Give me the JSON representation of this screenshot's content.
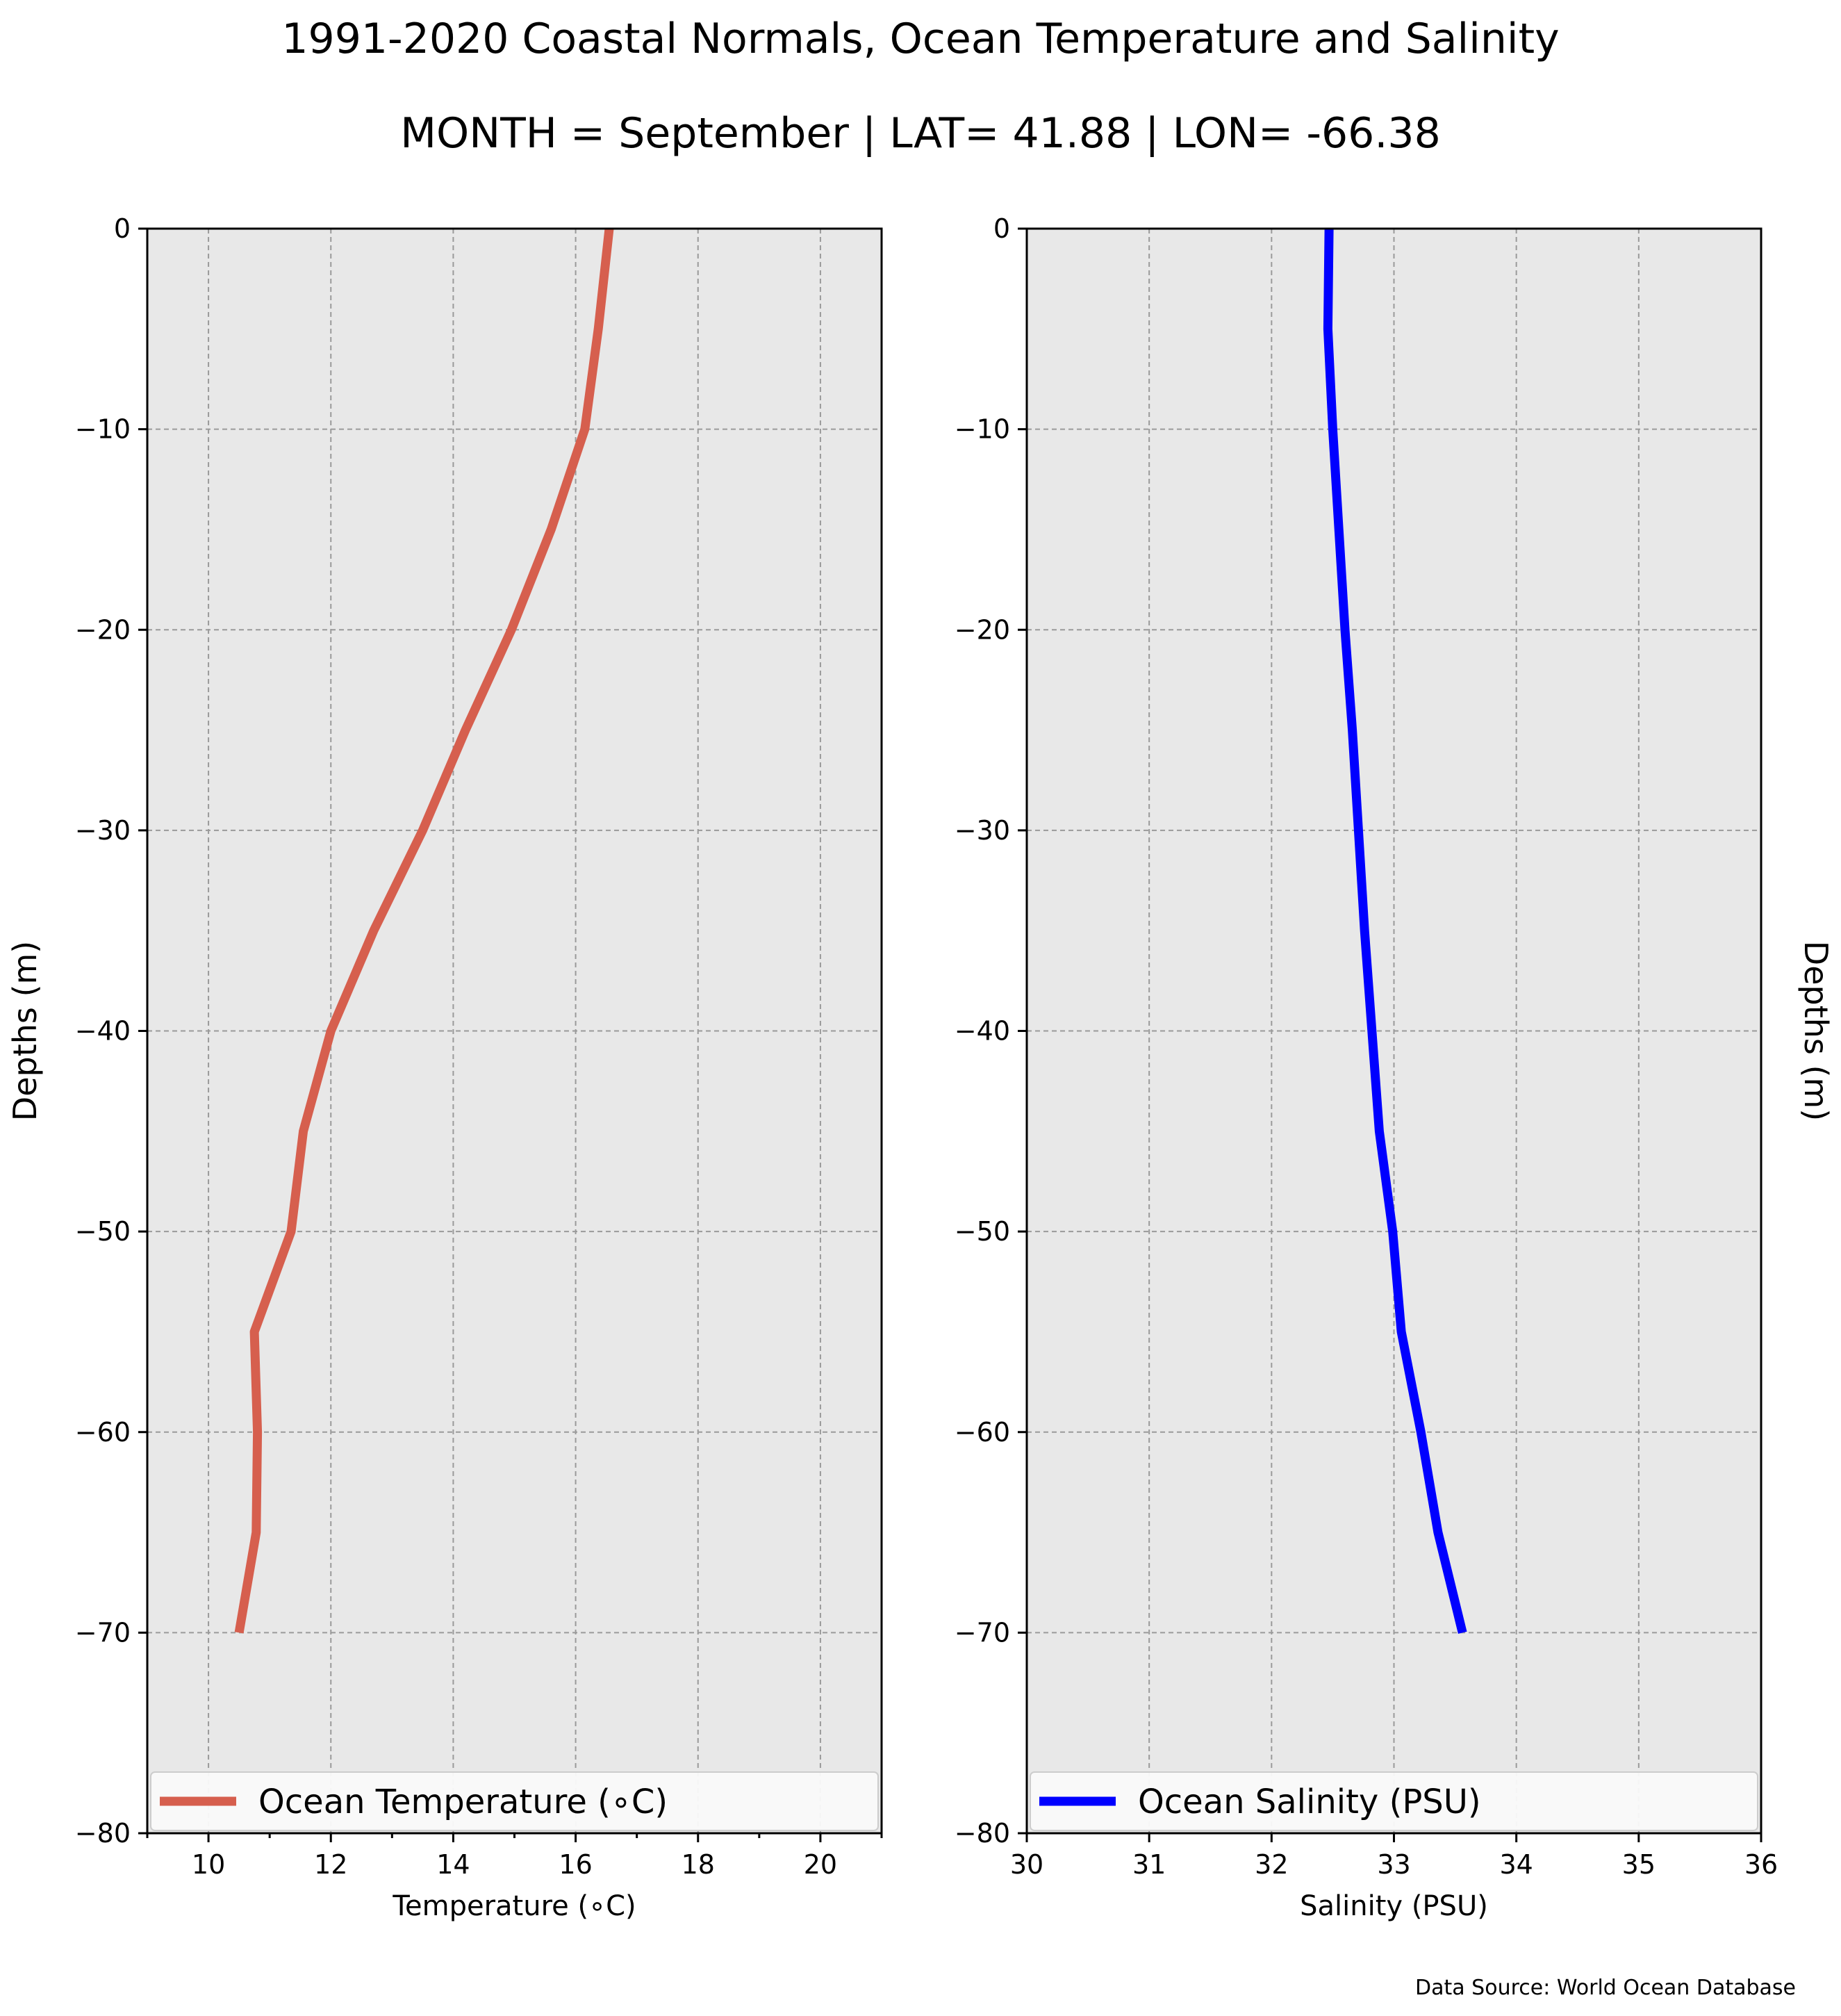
{
  "figure": {
    "title": "1991-2020 Coastal Normals, Ocean Temperature and Salinity",
    "subtitle": "MONTH = September | LAT= 41.88 | LON= -66.38",
    "source": "Data Source: World Ocean Database"
  },
  "chart_data": [
    {
      "type": "line",
      "xlabel": "Temperature (∘C)",
      "ylabel": "Depths (m)",
      "xlim": [
        9,
        21
      ],
      "ylim": [
        -80,
        0
      ],
      "xticks": [
        10,
        12,
        14,
        16,
        18,
        20
      ],
      "xticks_minor": [
        9,
        11,
        13,
        15,
        17,
        19,
        21
      ],
      "yticks": [
        0,
        -10,
        -20,
        -30,
        -40,
        -50,
        -60,
        -70,
        -80
      ],
      "tick_labels_x": [
        "10",
        "12",
        "14",
        "16",
        "18",
        "20"
      ],
      "tick_labels_y": [
        "0",
        "−10",
        "−20",
        "−30",
        "−40",
        "−50",
        "−60",
        "−70",
        "−80"
      ],
      "grid": true,
      "legend": "bottom",
      "ylabel_side": "left",
      "series": [
        {
          "name": "Ocean Temperature (∘C)",
          "color": "#d65f4e",
          "depth": [
            0,
            -5,
            -10,
            -15,
            -20,
            -25,
            -30,
            -35,
            -40,
            -45,
            -50,
            -55,
            -60,
            -65,
            -70
          ],
          "values": [
            16.55,
            16.37,
            16.15,
            15.6,
            14.95,
            14.2,
            13.5,
            12.7,
            12.0,
            11.55,
            11.35,
            10.75,
            10.8,
            10.78,
            10.5
          ]
        }
      ]
    },
    {
      "type": "line",
      "xlabel": "Salinity (PSU)",
      "ylabel": "Depths (m)",
      "xlim": [
        30,
        36
      ],
      "ylim": [
        -80,
        0
      ],
      "xticks": [
        30,
        31,
        32,
        33,
        34,
        35,
        36
      ],
      "yticks": [
        0,
        -10,
        -20,
        -30,
        -40,
        -50,
        -60,
        -70,
        -80
      ],
      "tick_labels_x": [
        "30",
        "31",
        "32",
        "33",
        "34",
        "35",
        "36"
      ],
      "tick_labels_y": [
        "0",
        "−10",
        "−20",
        "−30",
        "−40",
        "−50",
        "−60",
        "−70",
        "−80"
      ],
      "grid": true,
      "legend": "bottom",
      "ylabel_side": "right",
      "series": [
        {
          "name": "Ocean Salinity (PSU)",
          "color": "#0000ff",
          "depth": [
            0,
            -5,
            -10,
            -15,
            -20,
            -25,
            -30,
            -35,
            -40,
            -45,
            -50,
            -55,
            -60,
            -65,
            -70
          ],
          "values": [
            32.47,
            32.46,
            32.5,
            32.55,
            32.6,
            32.66,
            32.71,
            32.76,
            32.82,
            32.88,
            32.99,
            33.06,
            33.22,
            33.36,
            33.56
          ]
        }
      ]
    }
  ]
}
